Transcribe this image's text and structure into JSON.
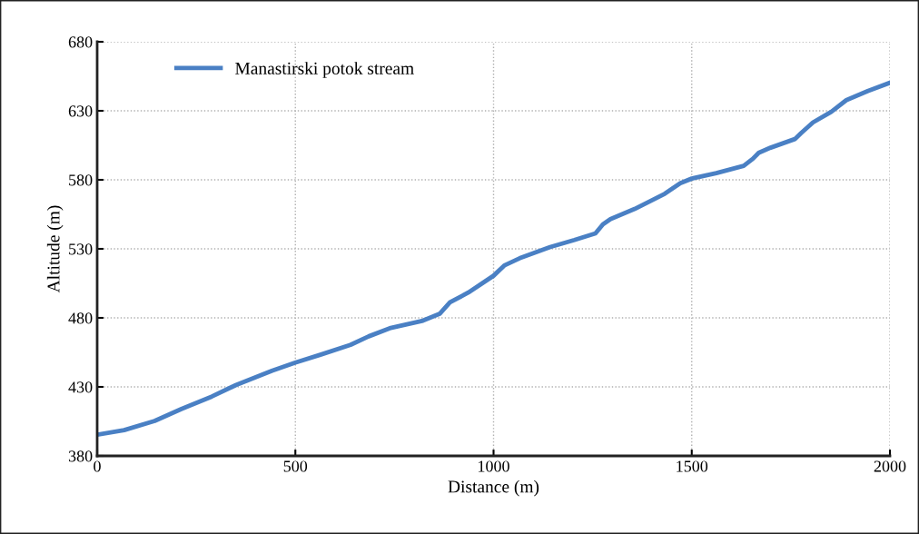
{
  "chart_data": {
    "type": "line",
    "xlabel": "Distance (m)",
    "ylabel": "Altitude (m)",
    "xlim": [
      0,
      2000
    ],
    "ylim": [
      380,
      680
    ],
    "xticks": [
      0,
      500,
      1000,
      1500,
      2000
    ],
    "yticks": [
      380,
      430,
      480,
      530,
      580,
      630,
      680
    ],
    "grid": true,
    "legend": "top left",
    "marker": "none",
    "line_style": "solid",
    "series": [
      {
        "name": "Manastirski potok stream",
        "color": "#4a80c4",
        "x": [
          0,
          68,
          145,
          213,
          289,
          350,
          441,
          500,
          563,
          639,
          685,
          738,
          822,
          864,
          890,
          936,
          1000,
          1028,
          1066,
          1143,
          1204,
          1257,
          1276,
          1295,
          1356,
          1432,
          1471,
          1500,
          1562,
          1631,
          1654,
          1669,
          1699,
          1760,
          1776,
          1806,
          1852,
          1890,
          1944,
          2000
        ],
        "values": [
          395.4,
          398.7,
          405.3,
          414.1,
          423,
          431.3,
          441.7,
          447.6,
          453.3,
          460.4,
          466.6,
          472.5,
          478,
          482.9,
          491.2,
          498.3,
          510.5,
          518.1,
          523.2,
          531.3,
          536.4,
          541.2,
          547.8,
          551.6,
          558.9,
          569.9,
          577.6,
          580.9,
          584.8,
          590.1,
          595.2,
          599.6,
          603.3,
          609.5,
          613.9,
          621.6,
          629.3,
          637.7,
          644.3,
          650.3
        ]
      }
    ]
  }
}
